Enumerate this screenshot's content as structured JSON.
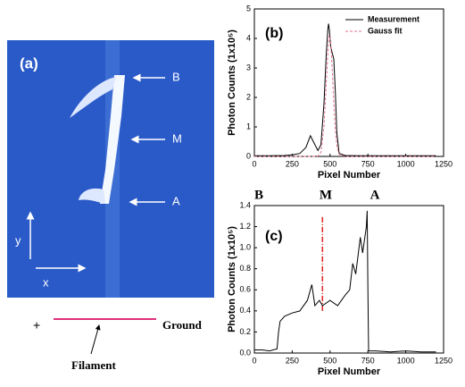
{
  "image_panel": {
    "label": "(a)",
    "points": [
      "B",
      "M",
      "A"
    ],
    "axes": [
      "y",
      "x"
    ],
    "polarity": "+",
    "ground": "Ground",
    "filament": "Filament"
  },
  "chart_data": [
    {
      "type": "line",
      "panel_label": "(b)",
      "x_label": "Pixel Number",
      "y_label": "Photon Counts (1x10⁵)",
      "xlim": [
        0,
        1250
      ],
      "xticks": [
        0,
        250,
        500,
        750,
        1000,
        1250
      ],
      "ylim": [
        0,
        5
      ],
      "yticks": [
        0,
        1,
        2,
        3,
        4,
        5
      ],
      "x": [
        0,
        100,
        200,
        250,
        300,
        340,
        370,
        390,
        420,
        440,
        460,
        475,
        485,
        490,
        495,
        505,
        515,
        525,
        535,
        545,
        560,
        600,
        700,
        800,
        1000,
        1200
      ],
      "series": [
        {
          "name": "Measurement",
          "color": "#000000",
          "dash": false,
          "values": [
            0.02,
            0.02,
            0.03,
            0.05,
            0.1,
            0.3,
            0.7,
            0.5,
            0.2,
            0.4,
            1.8,
            3.5,
            4.3,
            4.5,
            4.3,
            3.7,
            3.5,
            3.3,
            2.2,
            0.8,
            0.1,
            0.03,
            0.02,
            0.02,
            0.02,
            0.02
          ]
        },
        {
          "name": "Gauss fit",
          "color": "#e0708a",
          "dash": true,
          "values": [
            0,
            0,
            0,
            0,
            0,
            0,
            0,
            0,
            0.01,
            0.14,
            1.0,
            2.5,
            3.5,
            3.9,
            4.1,
            3.85,
            2.9,
            1.8,
            0.9,
            0.38,
            0.07,
            0,
            0,
            0,
            0,
            0
          ]
        }
      ]
    },
    {
      "type": "line",
      "panel_label": "(c)",
      "x_label": "Pixel Number",
      "y_label": "Photon Counts (1x10⁵)",
      "annotations": [
        "B",
        "M",
        "A"
      ],
      "xlim": [
        0,
        1250
      ],
      "xticks": [
        0,
        250,
        500,
        750,
        1000,
        1250
      ],
      "ylim": [
        0,
        1.4
      ],
      "yticks": [
        {
          "value": 0,
          "label": "0.0"
        },
        0.2,
        0.4,
        0.6,
        0.8,
        {
          "value": 1,
          "label": "1.0"
        },
        1.2,
        1.4
      ],
      "marker": {
        "x": 450,
        "y": [
          0.4,
          1.3
        ],
        "color": "#e02020"
      },
      "x": [
        0,
        50,
        100,
        150,
        160,
        170,
        200,
        250,
        300,
        350,
        380,
        400,
        430,
        450,
        500,
        550,
        600,
        630,
        650,
        670,
        700,
        715,
        730,
        740,
        745,
        750,
        755,
        800,
        900,
        1000,
        1100,
        1200
      ],
      "series": [
        {
          "name": "Measurement",
          "color": "#000000",
          "dash": false,
          "values": [
            0.03,
            0.03,
            0.02,
            0.04,
            0.2,
            0.3,
            0.35,
            0.38,
            0.4,
            0.5,
            0.65,
            0.45,
            0.5,
            0.45,
            0.5,
            0.45,
            0.55,
            0.6,
            0.85,
            0.75,
            1.1,
            0.95,
            1.1,
            1.2,
            1.35,
            0.6,
            0.02,
            0.02,
            0.01,
            0.02,
            0.01,
            0.01
          ]
        }
      ]
    }
  ]
}
